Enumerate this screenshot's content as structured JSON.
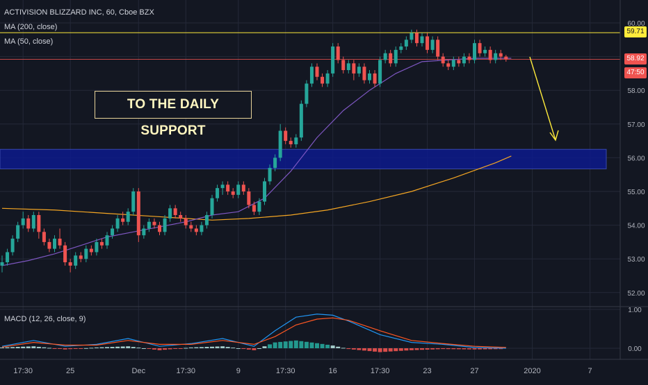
{
  "header": {
    "title": "ACTIVISION BLIZZARD INC, 60, Cboe BZX",
    "ma200_label": "MA (200, close)",
    "ma50_label": "MA (50, close)",
    "macd_label": "MACD (12, 26, close, 9)"
  },
  "annotation": {
    "text": "TO THE DAILY SUPPORT"
  },
  "price_tags": {
    "resistance": "59.71",
    "last_price": "58.92",
    "countdown": "47:50"
  },
  "colors": {
    "background": "#131722",
    "grid": "#242838",
    "up_candle": "#26a69a",
    "down_candle": "#ef5350",
    "ma200": "#f5a623",
    "ma50": "#7e57c2",
    "macd_line": "#2196f3",
    "signal_line": "#ff5722",
    "resistance_line": "#ffeb3b",
    "support_zone": "#0d1a8c",
    "arrow": "#ffeb3b"
  },
  "chart_data": {
    "type": "line",
    "title": "ACTIVISION BLIZZARD INC, 60, Cboe BZX",
    "x_ticks": [
      "17:30",
      "25",
      "Dec",
      "17:30",
      "9",
      "17:30",
      "16",
      "17:30",
      "23",
      "27",
      "2020",
      "7"
    ],
    "x_tick_index": [
      4,
      13,
      26,
      35,
      45,
      54,
      63,
      72,
      81,
      90,
      101,
      112
    ],
    "y_ticks": [
      52.0,
      53.0,
      54.0,
      55.0,
      56.0,
      57.0,
      58.0,
      59.0,
      60.0
    ],
    "ylim": [
      51.9,
      60.25
    ],
    "resistance_level": 59.71,
    "last_price": 58.92,
    "support_zone": [
      55.67,
      56.25
    ],
    "series": [
      {
        "name": "MA (200, close)",
        "x": [
          0,
          10,
          20,
          30,
          40,
          47,
          55,
          62,
          70,
          78,
          86,
          94,
          97
        ],
        "values": [
          54.5,
          54.45,
          54.35,
          54.25,
          54.15,
          54.2,
          54.3,
          54.45,
          54.7,
          55.0,
          55.4,
          55.85,
          56.05
        ]
      },
      {
        "name": "MA (50, close)",
        "x": [
          0,
          5,
          10,
          15,
          20,
          25,
          30,
          35,
          40,
          45,
          50,
          55,
          60,
          65,
          70,
          75,
          80,
          85,
          90,
          95,
          97
        ],
        "values": [
          52.8,
          52.95,
          53.15,
          53.4,
          53.65,
          53.8,
          53.95,
          54.1,
          54.3,
          54.4,
          54.8,
          55.6,
          56.6,
          57.4,
          58.0,
          58.5,
          58.85,
          58.9,
          58.95,
          58.95,
          58.95
        ]
      }
    ],
    "candles": [
      [
        0,
        52.8,
        52.9,
        52.6,
        53.1
      ],
      [
        1,
        52.9,
        53.2,
        52.8,
        53.3
      ],
      [
        2,
        53.2,
        53.6,
        53.1,
        53.7
      ],
      [
        3,
        53.6,
        54.0,
        53.5,
        54.1
      ],
      [
        4,
        54.0,
        54.2,
        53.9,
        54.4
      ],
      [
        5,
        54.2,
        53.9,
        53.8,
        54.3
      ],
      [
        6,
        53.9,
        54.3,
        53.8,
        54.4
      ],
      [
        7,
        54.3,
        53.8,
        53.6,
        54.4
      ],
      [
        8,
        53.8,
        53.5,
        53.4,
        53.9
      ],
      [
        9,
        53.5,
        53.3,
        53.2,
        53.6
      ],
      [
        10,
        53.3,
        53.6,
        53.2,
        53.7
      ],
      [
        11,
        53.6,
        53.4,
        53.3,
        53.9
      ],
      [
        12,
        53.4,
        52.9,
        52.8,
        53.5
      ],
      [
        13,
        52.9,
        52.8,
        52.6,
        53.0
      ],
      [
        14,
        52.8,
        53.1,
        52.7,
        53.2
      ],
      [
        15,
        53.1,
        53.0,
        52.9,
        53.2
      ],
      [
        16,
        53.0,
        53.3,
        52.9,
        53.4
      ],
      [
        17,
        53.3,
        53.2,
        53.1,
        53.4
      ],
      [
        18,
        53.2,
        53.5,
        53.1,
        53.6
      ],
      [
        19,
        53.5,
        53.4,
        53.3,
        53.6
      ],
      [
        20,
        53.4,
        53.7,
        53.3,
        53.8
      ],
      [
        21,
        53.7,
        53.9,
        53.6,
        54.0
      ],
      [
        22,
        53.9,
        54.2,
        53.8,
        54.3
      ],
      [
        23,
        54.2,
        54.1,
        54.0,
        54.4
      ],
      [
        24,
        54.1,
        54.4,
        54.0,
        54.5
      ],
      [
        25,
        54.4,
        55.0,
        54.3,
        55.1
      ],
      [
        26,
        55.0,
        53.7,
        53.5,
        55.1
      ],
      [
        27,
        53.7,
        53.9,
        53.6,
        54.0
      ],
      [
        28,
        53.9,
        54.1,
        53.8,
        54.2
      ],
      [
        29,
        54.1,
        54.0,
        53.9,
        54.2
      ],
      [
        30,
        54.0,
        53.8,
        53.7,
        54.1
      ],
      [
        31,
        53.8,
        54.2,
        53.7,
        54.3
      ],
      [
        32,
        54.2,
        54.5,
        54.1,
        54.6
      ],
      [
        33,
        54.5,
        54.3,
        54.2,
        54.6
      ],
      [
        34,
        54.3,
        54.2,
        54.1,
        54.4
      ],
      [
        35,
        54.2,
        54.0,
        53.9,
        54.3
      ],
      [
        36,
        54.0,
        53.9,
        53.8,
        54.1
      ],
      [
        37,
        53.9,
        53.8,
        53.7,
        54.0
      ],
      [
        38,
        53.8,
        54.0,
        53.7,
        54.1
      ],
      [
        39,
        54.0,
        54.3,
        53.9,
        54.4
      ],
      [
        40,
        54.3,
        54.8,
        54.2,
        54.9
      ],
      [
        41,
        54.8,
        55.1,
        54.7,
        55.2
      ],
      [
        42,
        55.1,
        55.2,
        54.9,
        55.3
      ],
      [
        43,
        55.2,
        55.0,
        54.9,
        55.3
      ],
      [
        44,
        55.0,
        54.9,
        54.8,
        55.1
      ],
      [
        45,
        54.9,
        55.2,
        54.8,
        55.3
      ],
      [
        46,
        55.2,
        55.0,
        54.9,
        55.3
      ],
      [
        47,
        55.0,
        54.6,
        54.5,
        55.1
      ],
      [
        48,
        54.6,
        54.4,
        54.3,
        54.7
      ],
      [
        49,
        54.4,
        54.7,
        54.3,
        54.8
      ],
      [
        50,
        54.7,
        55.3,
        54.6,
        55.4
      ],
      [
        51,
        55.3,
        55.7,
        55.2,
        55.8
      ],
      [
        52,
        55.7,
        56.0,
        55.6,
        56.1
      ],
      [
        53,
        56.0,
        56.8,
        55.9,
        57.0
      ],
      [
        54,
        56.8,
        56.5,
        56.4,
        56.9
      ],
      [
        55,
        56.5,
        56.4,
        56.3,
        56.6
      ],
      [
        56,
        56.4,
        56.6,
        56.3,
        56.7
      ],
      [
        57,
        56.6,
        57.6,
        56.5,
        57.7
      ],
      [
        58,
        57.6,
        58.2,
        57.5,
        58.3
      ],
      [
        59,
        58.2,
        58.7,
        58.1,
        58.8
      ],
      [
        60,
        58.7,
        58.4,
        58.3,
        58.8
      ],
      [
        61,
        58.4,
        58.2,
        58.1,
        58.5
      ],
      [
        62,
        58.2,
        58.5,
        58.1,
        58.6
      ],
      [
        63,
        58.5,
        59.3,
        58.4,
        59.4
      ],
      [
        64,
        59.3,
        58.9,
        58.8,
        59.4
      ],
      [
        65,
        58.9,
        58.6,
        58.5,
        59.0
      ],
      [
        66,
        58.6,
        58.8,
        58.5,
        58.9
      ],
      [
        67,
        58.8,
        58.5,
        58.3,
        58.9
      ],
      [
        68,
        58.5,
        58.7,
        58.4,
        58.8
      ],
      [
        69,
        58.7,
        58.3,
        58.2,
        58.8
      ],
      [
        70,
        58.3,
        58.5,
        58.2,
        58.6
      ],
      [
        71,
        58.5,
        58.2,
        58.1,
        58.6
      ],
      [
        72,
        58.2,
        58.9,
        58.1,
        59.0
      ],
      [
        73,
        58.9,
        59.1,
        58.8,
        59.2
      ],
      [
        74,
        59.1,
        58.8,
        58.7,
        59.2
      ],
      [
        75,
        58.8,
        59.2,
        58.7,
        59.3
      ],
      [
        76,
        59.2,
        59.3,
        59.1,
        59.4
      ],
      [
        77,
        59.3,
        59.5,
        59.2,
        59.6
      ],
      [
        78,
        59.5,
        59.7,
        59.4,
        59.8
      ],
      [
        79,
        59.7,
        59.4,
        59.3,
        59.8
      ],
      [
        80,
        59.4,
        59.6,
        59.3,
        59.7
      ],
      [
        81,
        59.6,
        59.2,
        59.1,
        59.7
      ],
      [
        82,
        59.2,
        59.5,
        59.1,
        59.6
      ],
      [
        83,
        59.5,
        59.0,
        58.9,
        59.6
      ],
      [
        84,
        59.0,
        58.8,
        58.7,
        59.1
      ],
      [
        85,
        58.8,
        58.7,
        58.6,
        58.9
      ],
      [
        86,
        58.7,
        58.9,
        58.6,
        59.0
      ],
      [
        87,
        58.9,
        58.8,
        58.7,
        59.0
      ],
      [
        88,
        58.8,
        59.0,
        58.7,
        59.1
      ],
      [
        89,
        59.0,
        58.9,
        58.8,
        59.1
      ],
      [
        90,
        58.9,
        59.4,
        58.8,
        59.5
      ],
      [
        91,
        59.4,
        59.1,
        59.0,
        59.5
      ],
      [
        92,
        59.1,
        59.2,
        59.0,
        59.3
      ],
      [
        93,
        59.2,
        58.9,
        58.8,
        59.3
      ],
      [
        94,
        58.9,
        59.1,
        58.8,
        59.2
      ],
      [
        95,
        59.1,
        59.0,
        58.9,
        59.2
      ],
      [
        96,
        59.0,
        58.92,
        58.85,
        59.05
      ]
    ],
    "macd": {
      "label": "MACD (12, 26, close, 9)",
      "y_ticks": [
        0.0,
        1.0
      ],
      "ylim": [
        -0.25,
        1.05
      ],
      "x": [
        0,
        6,
        12,
        18,
        24,
        30,
        36,
        42,
        48,
        52,
        56,
        60,
        63,
        66,
        72,
        78,
        84,
        90,
        96
      ],
      "macd_line": [
        0.05,
        0.2,
        0.05,
        0.1,
        0.25,
        0.05,
        0.12,
        0.25,
        0.05,
        0.45,
        0.8,
        0.88,
        0.85,
        0.7,
        0.35,
        0.15,
        0.1,
        0.02,
        0.0
      ],
      "signal_line": [
        0.03,
        0.15,
        0.08,
        0.08,
        0.2,
        0.1,
        0.1,
        0.2,
        0.1,
        0.3,
        0.6,
        0.75,
        0.78,
        0.72,
        0.45,
        0.2,
        0.12,
        0.05,
        0.02
      ],
      "histogram": [
        0.02,
        0.05,
        -0.03,
        0.02,
        0.05,
        -0.05,
        0.02,
        0.05,
        -0.05,
        0.15,
        0.2,
        0.13,
        0.07,
        -0.02,
        -0.1,
        -0.05,
        -0.02,
        -0.03,
        -0.02
      ]
    }
  }
}
